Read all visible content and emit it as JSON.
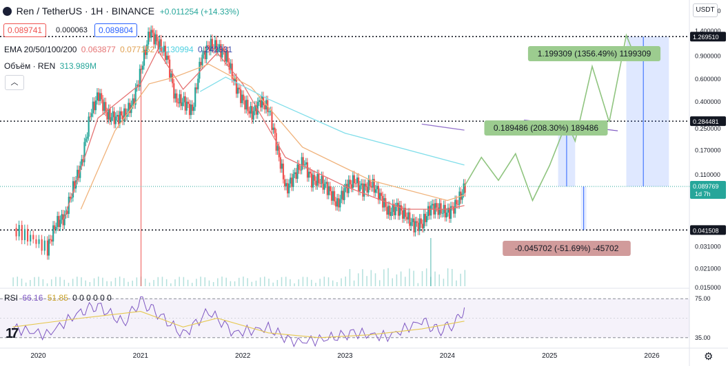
{
  "header": {
    "symbol": "Ren / TetherUS · 1H · BINANCE",
    "change": "+0.011254 (+14.33%)",
    "bid": "0.089741",
    "spread": "0.000063",
    "ask": "0.089804",
    "ema_label": "EMA 20/50/100/200",
    "ema_values": [
      "0.063877",
      "0.077152",
      "0.130994",
      "0.242831"
    ],
    "volume_label": "Объём · REN",
    "volume_value": "313.989M",
    "currency_button": "USDT",
    "collapse_icon": "chevron-up-icon"
  },
  "colors": {
    "up": "#26a69a",
    "down": "#ef5350",
    "ema20": "#e57373",
    "ema50": "#f0b27a",
    "ema100": "#80deea",
    "ema200": "#9575cd",
    "rsi": "#7e57c2",
    "rsi_ma": "#e6c84f",
    "projection": "#8fc47f",
    "level_tag": "#131722",
    "price_tag": "#26a69a"
  },
  "price_axis_labels": [
    "2.000000",
    "1.400000",
    "0.900000",
    "0.600000",
    "0.400000",
    "0.250000",
    "0.170000",
    "0.110000",
    "0.031000",
    "0.021000",
    "0.015000"
  ],
  "level_tags": [
    "1.269510",
    "0.284481",
    "0.041508"
  ],
  "current_price": {
    "value": "0.089769",
    "countdown": "1d 7h"
  },
  "time_axis_labels": [
    "2020",
    "2021",
    "2022",
    "2023",
    "2024",
    "2025",
    "2026"
  ],
  "rsi": {
    "label": "RSI",
    "value": "66.16",
    "ma_value": "51.85",
    "flags": "0 0 0 0 0 0",
    "levels": [
      "75.00",
      "35.00"
    ]
  },
  "measurements": [
    {
      "text": "1.199309 (1356.49%) 1199309",
      "kind": "up"
    },
    {
      "text": "0.189486 (208.30%) 189486",
      "kind": "up"
    },
    {
      "text": "-0.045702 (-51.69%) -45702",
      "kind": "down"
    }
  ],
  "chart_data": {
    "type": "candlestick",
    "symbol": "REN/USDT",
    "scale": "log",
    "ylim": [
      0.015,
      2.2
    ],
    "xlim": [
      "2019-09",
      "2026-05"
    ],
    "close_series": [
      [
        "2019-10",
        0.043
      ],
      [
        "2019-12",
        0.036
      ],
      [
        "2020-02",
        0.03
      ],
      [
        "2020-03",
        0.047
      ],
      [
        "2020-04",
        0.052
      ],
      [
        "2020-05",
        0.088
      ],
      [
        "2020-06",
        0.135
      ],
      [
        "2020-07",
        0.32
      ],
      [
        "2020-08",
        0.46
      ],
      [
        "2020-09",
        0.32
      ],
      [
        "2020-10",
        0.3
      ],
      [
        "2020-11",
        0.32
      ],
      [
        "2020-12",
        0.39
      ],
      [
        "2021-01",
        0.72
      ],
      [
        "2021-02",
        1.4
      ],
      [
        "2021-03",
        1.12
      ],
      [
        "2021-04",
        0.9
      ],
      [
        "2021-05",
        0.42
      ],
      [
        "2021-06",
        0.4
      ],
      [
        "2021-07",
        0.34
      ],
      [
        "2021-08",
        0.85
      ],
      [
        "2021-09",
        1.1
      ],
      [
        "2021-10",
        1.05
      ],
      [
        "2021-11",
        0.9
      ],
      [
        "2021-12",
        0.55
      ],
      [
        "2022-01",
        0.4
      ],
      [
        "2022-02",
        0.32
      ],
      [
        "2022-03",
        0.41
      ],
      [
        "2022-04",
        0.35
      ],
      [
        "2022-05",
        0.17
      ],
      [
        "2022-06",
        0.085
      ],
      [
        "2022-07",
        0.11
      ],
      [
        "2022-08",
        0.14
      ],
      [
        "2022-09",
        0.1
      ],
      [
        "2022-10",
        0.1
      ],
      [
        "2022-11",
        0.085
      ],
      [
        "2022-12",
        0.065
      ],
      [
        "2023-01",
        0.088
      ],
      [
        "2023-02",
        0.1
      ],
      [
        "2023-03",
        0.085
      ],
      [
        "2023-04",
        0.095
      ],
      [
        "2023-05",
        0.077
      ],
      [
        "2023-06",
        0.057
      ],
      [
        "2023-07",
        0.062
      ],
      [
        "2023-08",
        0.054
      ],
      [
        "2023-09",
        0.045
      ],
      [
        "2023-10",
        0.047
      ],
      [
        "2023-11",
        0.063
      ],
      [
        "2023-12",
        0.06
      ],
      [
        "2024-01",
        0.056
      ],
      [
        "2024-02",
        0.066
      ],
      [
        "2024-03",
        0.0898
      ]
    ],
    "ema_series": {
      "EMA20": [
        [
          "2020-04",
          0.05
        ],
        [
          "2020-08",
          0.3
        ],
        [
          "2021-01",
          0.55
        ],
        [
          "2021-03",
          1.0
        ],
        [
          "2021-06",
          0.5
        ],
        [
          "2021-10",
          0.95
        ],
        [
          "2022-01",
          0.55
        ],
        [
          "2022-06",
          0.15
        ],
        [
          "2023-01",
          0.09
        ],
        [
          "2023-08",
          0.06
        ],
        [
          "2024-01",
          0.06
        ],
        [
          "2024-03",
          0.064
        ]
      ],
      "EMA50": [
        [
          "2020-06",
          0.06
        ],
        [
          "2020-10",
          0.24
        ],
        [
          "2021-02",
          0.55
        ],
        [
          "2021-05",
          0.62
        ],
        [
          "2021-09",
          0.78
        ],
        [
          "2022-02",
          0.52
        ],
        [
          "2022-08",
          0.18
        ],
        [
          "2023-04",
          0.1
        ],
        [
          "2024-01",
          0.07
        ],
        [
          "2024-03",
          0.077
        ]
      ],
      "EMA100": [
        [
          "2021-08",
          0.48
        ],
        [
          "2021-11",
          0.62
        ],
        [
          "2022-04",
          0.42
        ],
        [
          "2023-01",
          0.23
        ],
        [
          "2024-03",
          0.131
        ]
      ],
      "EMA200": [
        [
          "2023-10",
          0.27
        ],
        [
          "2024-03",
          0.243
        ]
      ]
    },
    "volume_spikes": [
      "2021-01",
      "2023-11"
    ],
    "projection_path": [
      [
        "2024-03",
        0.0898
      ],
      [
        "2024-05",
        0.15
      ],
      [
        "2024-07",
        0.1
      ],
      [
        "2024-09",
        0.16
      ],
      [
        "2024-11",
        0.07
      ],
      [
        "2025-01",
        0.13
      ],
      [
        "2025-03",
        0.28
      ],
      [
        "2025-04",
        0.2
      ],
      [
        "2025-06",
        0.75
      ],
      [
        "2025-08",
        0.28
      ],
      [
        "2025-10",
        1.3
      ],
      [
        "2025-11",
        0.9
      ],
      [
        "2025-12",
        1.05
      ]
    ],
    "horizontal_levels": [
      1.26951,
      0.284481,
      0.041508
    ],
    "current_level": 0.089769,
    "rsi_series": [
      [
        "2019-10",
        45
      ],
      [
        "2020-02",
        38
      ],
      [
        "2020-06",
        62
      ],
      [
        "2020-08",
        68
      ],
      [
        "2020-11",
        50
      ],
      [
        "2021-01",
        73
      ],
      [
        "2021-03",
        60
      ],
      [
        "2021-06",
        38
      ],
      [
        "2021-09",
        62
      ],
      [
        "2021-12",
        40
      ],
      [
        "2022-04",
        45
      ],
      [
        "2022-07",
        30
      ],
      [
        "2022-11",
        34
      ],
      [
        "2023-02",
        40
      ],
      [
        "2023-06",
        36
      ],
      [
        "2023-10",
        52
      ],
      [
        "2023-12",
        42
      ],
      [
        "2024-02",
        50
      ],
      [
        "2024-03",
        66
      ]
    ],
    "rsi_ma_series": [
      [
        "2019-10",
        46
      ],
      [
        "2020-06",
        55
      ],
      [
        "2021-01",
        62
      ],
      [
        "2021-06",
        46
      ],
      [
        "2021-10",
        55
      ],
      [
        "2022-04",
        40
      ],
      [
        "2022-10",
        35
      ],
      [
        "2023-04",
        38
      ],
      [
        "2023-10",
        44
      ],
      [
        "2024-03",
        52
      ]
    ]
  }
}
